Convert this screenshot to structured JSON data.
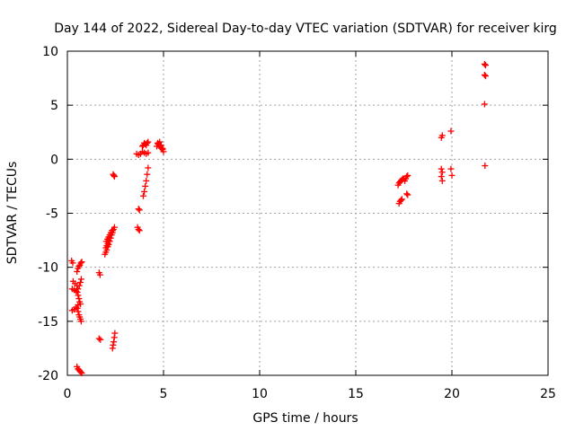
{
  "chart_data": {
    "type": "scatter",
    "title": "Day 144 of 2022, Sidereal Day-to-day VTEC variation (SDTVAR) for receiver kirg",
    "xlabel": "GPS time / hours",
    "ylabel": "SDTVAR / TECUs",
    "xlim": [
      0,
      25
    ],
    "ylim": [
      -20,
      10
    ],
    "xticks": [
      0,
      5,
      10,
      15,
      20,
      25
    ],
    "yticks": [
      -20,
      -15,
      -10,
      -5,
      0,
      5,
      10
    ],
    "grid": true,
    "marker": "plus",
    "color": "#ff0000",
    "series": [
      {
        "name": "SDTVAR",
        "segments": [
          {
            "x": [
              0.22,
              0.28
            ],
            "y": [
              -9.4,
              -9.6
            ]
          },
          {
            "x": [
              0.25,
              0.35,
              0.45,
              0.55,
              0.62,
              0.68,
              0.72
            ],
            "y": [
              -12.0,
              -12.1,
              -12.2,
              -12.0,
              -11.7,
              -11.4,
              -11.1
            ]
          },
          {
            "x": [
              0.25,
              0.35,
              0.45,
              0.55
            ],
            "y": [
              -14.0,
              -13.9,
              -13.7,
              -13.5
            ]
          },
          {
            "x": [
              0.52,
              0.56,
              0.6,
              0.64,
              0.68,
              0.72
            ],
            "y": [
              -13.8,
              -14.1,
              -14.4,
              -14.6,
              -14.8,
              -15.0
            ]
          },
          {
            "x": [
              0.5,
              0.55,
              0.6,
              0.65,
              0.7,
              0.75
            ],
            "y": [
              -10.4,
              -10.1,
              -9.9,
              -9.8,
              -9.6,
              -9.5
            ]
          },
          {
            "x": [
              0.3,
              0.4,
              0.5
            ],
            "y": [
              -11.3,
              -11.5,
              -11.7
            ]
          },
          {
            "x": [
              0.52,
              0.56,
              0.6,
              0.64,
              0.68
            ],
            "y": [
              -12.3,
              -12.6,
              -12.9,
              -13.2,
              -13.4
            ]
          },
          {
            "x": [
              0.5,
              0.55,
              0.6,
              0.65,
              0.7,
              0.75
            ],
            "y": [
              -19.2,
              -19.4,
              -19.5,
              -19.6,
              -19.7,
              -19.8
            ]
          },
          {
            "x": [
              1.65,
              1.7
            ],
            "y": [
              -10.5,
              -10.7
            ]
          },
          {
            "x": [
              1.65,
              1.72
            ],
            "y": [
              -16.6,
              -16.7
            ]
          },
          {
            "x": [
              1.95,
              2.0,
              2.05,
              2.1,
              2.15,
              2.2,
              2.25,
              2.3,
              2.35,
              2.4,
              2.45
            ],
            "y": [
              -8.8,
              -8.6,
              -8.4,
              -8.1,
              -7.9,
              -7.6,
              -7.3,
              -7.0,
              -6.8,
              -6.5,
              -6.3
            ]
          },
          {
            "x": [
              2.0,
              2.05,
              2.1,
              2.15,
              2.2,
              2.25,
              2.3,
              2.35
            ],
            "y": [
              -8.2,
              -8.0,
              -7.8,
              -7.5,
              -7.3,
              -7.0,
              -6.8,
              -6.6
            ]
          },
          {
            "x": [
              2.02,
              2.08,
              2.14,
              2.2,
              2.26,
              2.32
            ],
            "y": [
              -7.6,
              -7.4,
              -7.2,
              -7.0,
              -6.8,
              -6.6
            ]
          },
          {
            "x": [
              2.38,
              2.42,
              2.45
            ],
            "y": [
              -1.4,
              -1.5,
              -1.6
            ]
          },
          {
            "x": [
              2.35,
              2.38,
              2.41,
              2.44,
              2.47
            ],
            "y": [
              -17.5,
              -17.2,
              -16.9,
              -16.5,
              -16.1
            ]
          },
          {
            "x": [
              3.7,
              3.75
            ],
            "y": [
              -4.6,
              -4.7
            ]
          },
          {
            "x": [
              3.65,
              3.7,
              3.75
            ],
            "y": [
              -6.3,
              -6.5,
              -6.6
            ]
          },
          {
            "x": [
              3.6,
              3.7,
              3.8,
              3.9,
              4.0,
              4.1,
              4.2
            ],
            "y": [
              0.5,
              0.4,
              0.5,
              0.7,
              0.6,
              0.5,
              0.6
            ]
          },
          {
            "x": [
              3.9,
              3.95,
              4.0,
              4.05,
              4.1,
              4.15,
              4.2
            ],
            "y": [
              1.2,
              1.3,
              1.5,
              1.4,
              1.3,
              1.5,
              1.6
            ]
          },
          {
            "x": [
              3.95,
              4.0,
              4.05,
              4.1,
              4.15,
              4.2
            ],
            "y": [
              -3.4,
              -3.0,
              -2.5,
              -2.0,
              -1.4,
              -0.8
            ]
          },
          {
            "x": [
              4.7,
              4.75,
              4.8,
              4.85,
              4.9,
              4.95,
              5.0
            ],
            "y": [
              1.5,
              1.4,
              1.3,
              1.1,
              1.0,
              0.9,
              0.7
            ]
          },
          {
            "x": [
              4.65,
              4.72,
              4.8,
              4.88,
              4.95
            ],
            "y": [
              1.2,
              1.4,
              1.6,
              1.3,
              1.0
            ]
          },
          {
            "x": [
              17.2,
              17.25,
              17.3,
              17.35,
              17.4,
              17.45,
              17.5
            ],
            "y": [
              -2.4,
              -2.2,
              -2.1,
              -2.0,
              -1.9,
              -1.8,
              -1.8
            ]
          },
          {
            "x": [
              17.25,
              17.3,
              17.35,
              17.4
            ],
            "y": [
              -4.1,
              -3.9,
              -3.8,
              -3.7
            ]
          },
          {
            "x": [
              17.55,
              17.6,
              17.65,
              17.7
            ],
            "y": [
              -2.0,
              -1.8,
              -1.6,
              -1.5
            ]
          },
          {
            "x": [
              17.65,
              17.7
            ],
            "y": [
              -3.2,
              -3.3
            ]
          },
          {
            "x": [
              19.45,
              19.5
            ],
            "y": [
              2.0,
              2.2
            ]
          },
          {
            "x": [
              19.45,
              19.5
            ],
            "y": [
              -0.9,
              -1.2
            ]
          },
          {
            "x": [
              19.45,
              19.5
            ],
            "y": [
              -1.6,
              -2.0
            ]
          },
          {
            "x": [
              19.95
            ],
            "y": [
              2.6
            ]
          },
          {
            "x": [
              19.95,
              20.0
            ],
            "y": [
              -0.9,
              -1.5
            ]
          },
          {
            "x": [
              21.7,
              21.75
            ],
            "y": [
              8.8,
              8.7
            ]
          },
          {
            "x": [
              21.7,
              21.75
            ],
            "y": [
              7.8,
              7.7
            ]
          },
          {
            "x": [
              21.7
            ],
            "y": [
              5.1
            ]
          },
          {
            "x": [
              21.72
            ],
            "y": [
              -0.6
            ]
          }
        ]
      }
    ]
  }
}
